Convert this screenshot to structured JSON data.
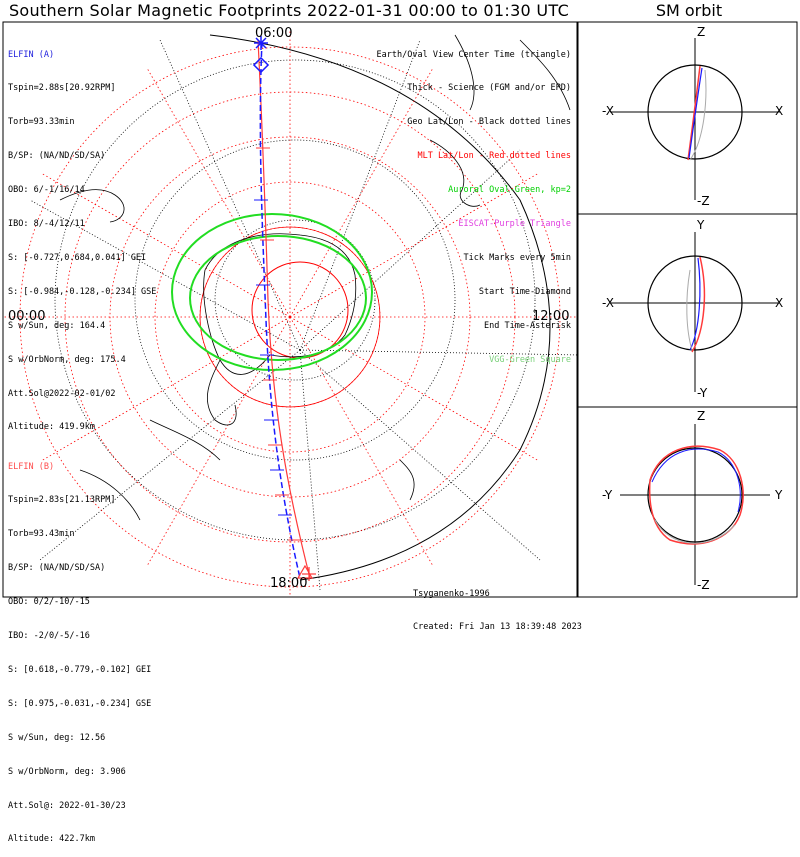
{
  "title": "Southern Solar Magnetic Footprints 2022-01-31 00:00 to 01:30 UTC",
  "sm_orbit_title": "SM orbit",
  "hour_labels": {
    "top": "06:00",
    "left": "00:00",
    "right": "12:00",
    "bottom": "18:00"
  },
  "elfin_a": {
    "header": "ELFIN (A)",
    "lines": [
      "Tspin=2.88s[20.92RPM]",
      "Torb=93.33min",
      "B/SP: (NA/ND/SD/SA)",
      "OBO: 6/-1/16/14",
      "IBO: 8/-4/12/11",
      "S: [-0.727,0.684,0.041] GEI",
      "S: [-0.984,-0.128,-0.234] GSE",
      "S w/Sun, deg: 164.4",
      "S w/OrbNorm, deg: 175.4",
      "Att.Sol@2022-02-01/02",
      "Altitude: 419.9km"
    ]
  },
  "elfin_b": {
    "header": "ELFIN (B)",
    "lines": [
      "Tspin=2.83s[21.13RPM]",
      "Torb=93.43min",
      "B/SP: (NA/ND/SD/SA)",
      "OBO: 0/2/-10/-15",
      "IBO: -2/0/-5/-16",
      "S: [0.618,-0.779,-0.102] GEI",
      "S: [0.975,-0.031,-0.234] GSE",
      "S w/Sun, deg: 12.56",
      "S w/OrbNorm, deg: 3.906",
      "Att.Sol@: 2022-01-30/23",
      "Altitude: 422.7km"
    ]
  },
  "legend": [
    {
      "text": "Earth/Oval View Center Time (triangle)",
      "color": "black"
    },
    {
      "text": "Thick - Science (FGM and/or EPD)",
      "color": "black"
    },
    {
      "text": "Geo Lat/Lon - Black dotted lines",
      "color": "black"
    },
    {
      "text": "MLT Lat/Lon - Red dotted lines",
      "color": "red"
    },
    {
      "text": "Auroral Oval-Green, kp=2",
      "color": "green"
    },
    {
      "text": "EISCAT-Purple Triangle",
      "color": "purple"
    },
    {
      "text": "Tick Marks every 5min",
      "color": "black"
    },
    {
      "text": "Start Time-Diamond",
      "color": "black"
    },
    {
      "text": "End Time-Asterisk",
      "color": "black"
    },
    {
      "text": "VGG-Green Square",
      "color": "ltgreen"
    }
  ],
  "credits": [
    "Tsyganenko-1996",
    "Created: Fri Jan 13 18:39:48 2023"
  ],
  "sm_panels": [
    {
      "top": "Z",
      "bottom": "-Z",
      "left": "-X",
      "right": "X"
    },
    {
      "top": "Y",
      "bottom": "-Y",
      "left": "-X",
      "right": "X"
    },
    {
      "top": "Z",
      "bottom": "-Z",
      "left": "-Y",
      "right": "Y"
    }
  ],
  "colors": {
    "elfin_a": "#1a1aff",
    "elfin_b": "#ff3a3a",
    "oval": "#22dd22",
    "mlt_grid": "#ff0000",
    "geo_grid": "#000000"
  }
}
